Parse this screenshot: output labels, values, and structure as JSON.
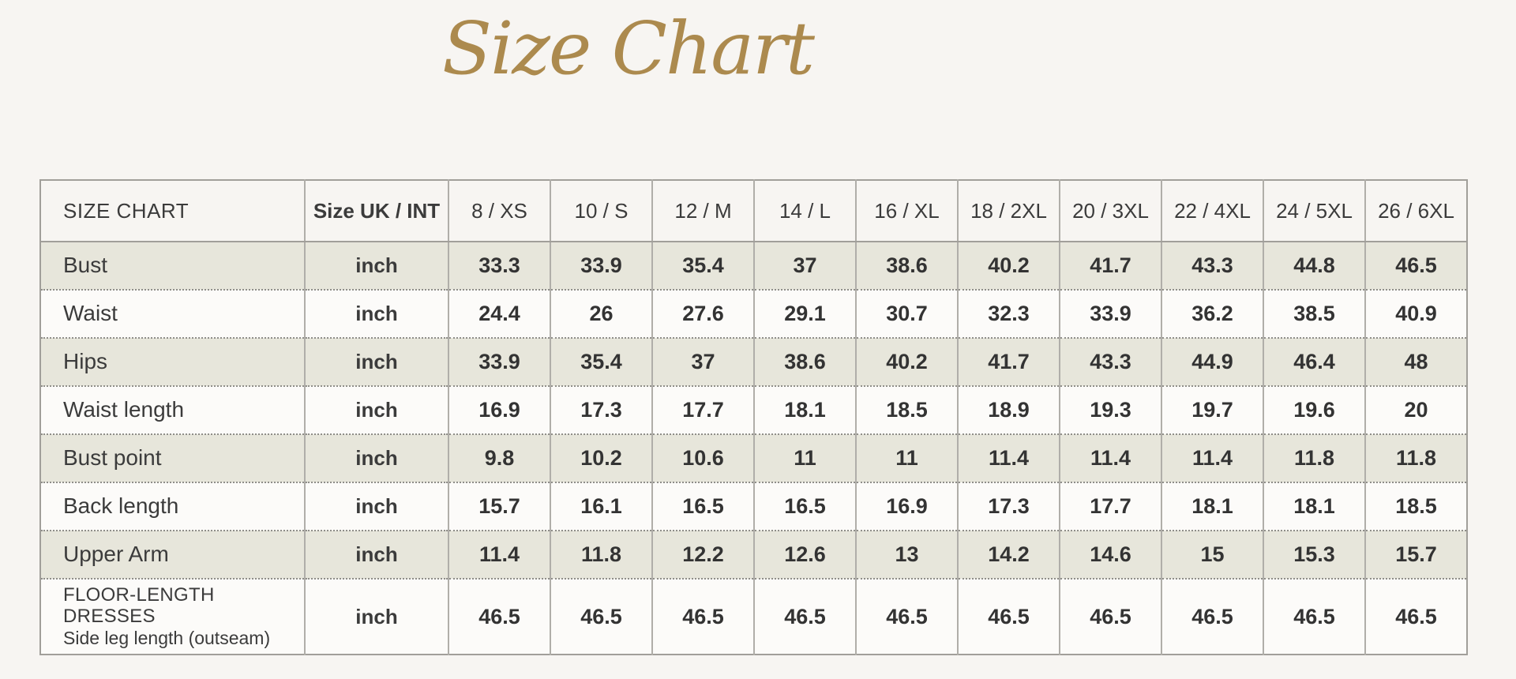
{
  "page": {
    "title": "Size Chart",
    "background_color": "#f7f5f2",
    "accent_color": "#ac8a4e",
    "shaded_row_color": "#e7e6db"
  },
  "table": {
    "header": {
      "label": "SIZE CHART",
      "unit_label": "Size UK / INT",
      "sizes": [
        "8 / XS",
        "10 / S",
        "12 / M",
        "14 / L",
        "16 / XL",
        "18 / 2XL",
        "20 / 3XL",
        "22 / 4XL",
        "24 / 5XL",
        "26 / 6XL"
      ]
    },
    "rows": [
      {
        "label": "Bust",
        "unit": "inch",
        "values": [
          "33.3",
          "33.9",
          "35.4",
          "37",
          "38.6",
          "40.2",
          "41.7",
          "43.3",
          "44.8",
          "46.5"
        ]
      },
      {
        "label": "Waist",
        "unit": "inch",
        "values": [
          "24.4",
          "26",
          "27.6",
          "29.1",
          "30.7",
          "32.3",
          "33.9",
          "36.2",
          "38.5",
          "40.9"
        ]
      },
      {
        "label": "Hips",
        "unit": "inch",
        "values": [
          "33.9",
          "35.4",
          "37",
          "38.6",
          "40.2",
          "41.7",
          "43.3",
          "44.9",
          "46.4",
          "48"
        ]
      },
      {
        "label": "Waist length",
        "unit": "inch",
        "values": [
          "16.9",
          "17.3",
          "17.7",
          "18.1",
          "18.5",
          "18.9",
          "19.3",
          "19.7",
          "19.6",
          "20"
        ]
      },
      {
        "label": "Bust point",
        "unit": "inch",
        "values": [
          "9.8",
          "10.2",
          "10.6",
          "11",
          "11",
          "11.4",
          "11.4",
          "11.4",
          "11.8",
          "11.8"
        ]
      },
      {
        "label": "Back length",
        "unit": "inch",
        "values": [
          "15.7",
          "16.1",
          "16.5",
          "16.5",
          "16.9",
          "17.3",
          "17.7",
          "18.1",
          "18.1",
          "18.5"
        ]
      },
      {
        "label": "Upper Arm",
        "unit": "inch",
        "values": [
          "11.4",
          "11.8",
          "12.2",
          "12.6",
          "13",
          "14.2",
          "14.6",
          "15",
          "15.3",
          "15.7"
        ]
      },
      {
        "label": "FLOOR-LENGTH DRESSES",
        "sublabel": "Side leg length (outseam)",
        "unit": "inch",
        "values": [
          "46.5",
          "46.5",
          "46.5",
          "46.5",
          "46.5",
          "46.5",
          "46.5",
          "46.5",
          "46.5",
          "46.5"
        ]
      }
    ]
  },
  "chart_data": {
    "type": "table",
    "title": "Size Chart",
    "unit": "inch",
    "columns": [
      "SIZE CHART",
      "Size UK / INT",
      "8 / XS",
      "10 / S",
      "12 / M",
      "14 / L",
      "16 / XL",
      "18 / 2XL",
      "20 / 3XL",
      "22 / 4XL",
      "24 / 5XL",
      "26 / 6XL"
    ],
    "series": [
      {
        "name": "Bust",
        "values": [
          33.3,
          33.9,
          35.4,
          37,
          38.6,
          40.2,
          41.7,
          43.3,
          44.8,
          46.5
        ]
      },
      {
        "name": "Waist",
        "values": [
          24.4,
          26,
          27.6,
          29.1,
          30.7,
          32.3,
          33.9,
          36.2,
          38.5,
          40.9
        ]
      },
      {
        "name": "Hips",
        "values": [
          33.9,
          35.4,
          37,
          38.6,
          40.2,
          41.7,
          43.3,
          44.9,
          46.4,
          48
        ]
      },
      {
        "name": "Waist length",
        "values": [
          16.9,
          17.3,
          17.7,
          18.1,
          18.5,
          18.9,
          19.3,
          19.7,
          19.6,
          20
        ]
      },
      {
        "name": "Bust point",
        "values": [
          9.8,
          10.2,
          10.6,
          11,
          11,
          11.4,
          11.4,
          11.4,
          11.8,
          11.8
        ]
      },
      {
        "name": "Back length",
        "values": [
          15.7,
          16.1,
          16.5,
          16.5,
          16.9,
          17.3,
          17.7,
          18.1,
          18.1,
          18.5
        ]
      },
      {
        "name": "Upper Arm",
        "values": [
          11.4,
          11.8,
          12.2,
          12.6,
          13,
          14.2,
          14.6,
          15,
          15.3,
          15.7
        ]
      },
      {
        "name": "FLOOR-LENGTH DRESSES Side leg length (outseam)",
        "values": [
          46.5,
          46.5,
          46.5,
          46.5,
          46.5,
          46.5,
          46.5,
          46.5,
          46.5,
          46.5
        ]
      }
    ]
  }
}
